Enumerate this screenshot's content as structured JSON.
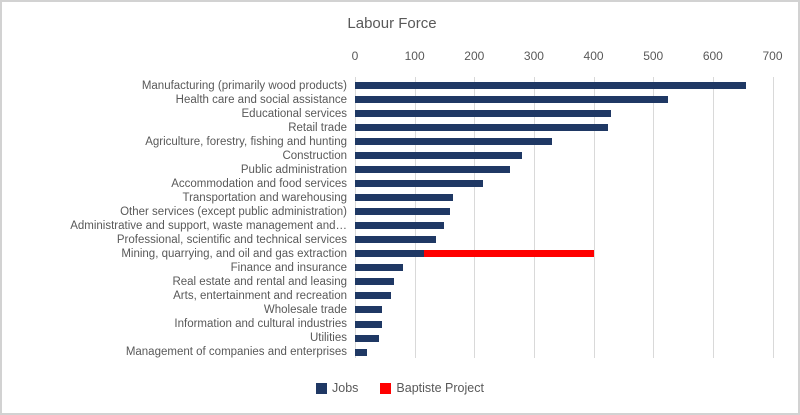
{
  "chart_data": {
    "type": "bar",
    "orientation": "horizontal",
    "stacked": true,
    "title": "Labour Force",
    "grid": true,
    "legend_position": "bottom",
    "x_axis": {
      "min": 0,
      "max": 700,
      "tick_interval": 100,
      "ticks": [
        0,
        100,
        200,
        300,
        400,
        500,
        600,
        700
      ],
      "position": "top"
    },
    "categories": [
      "Manufacturing (primarily wood products)",
      "Health care and social assistance",
      "Educational services",
      "Retail trade",
      "Agriculture, forestry, fishing and hunting",
      "Construction",
      "Public administration",
      "Accommodation and food services",
      "Transportation and warehousing",
      "Other services (except public administration)",
      "Administrative and support, waste management and…",
      "Professional, scientific and technical services",
      "Mining, quarrying, and oil and gas extraction",
      "Finance and insurance",
      "Real estate and rental and leasing",
      "Arts, entertainment and recreation",
      "Wholesale trade",
      "Information and cultural industries",
      "Utilities",
      "Management of companies and enterprises"
    ],
    "series": [
      {
        "name": "Jobs",
        "color": "#1F3864",
        "values": [
          655,
          525,
          430,
          425,
          330,
          280,
          260,
          215,
          165,
          160,
          150,
          135,
          115,
          80,
          65,
          60,
          45,
          45,
          40,
          20
        ]
      },
      {
        "name": "Baptiste Project",
        "color": "#FF0000",
        "values": [
          0,
          0,
          0,
          0,
          0,
          0,
          0,
          0,
          0,
          0,
          0,
          0,
          285,
          0,
          0,
          0,
          0,
          0,
          0,
          0
        ]
      }
    ]
  },
  "colors": {
    "text": "#595959",
    "gridline": "#D9D9D9",
    "border": "#D2D2D2",
    "background": "#FFFFFF"
  }
}
